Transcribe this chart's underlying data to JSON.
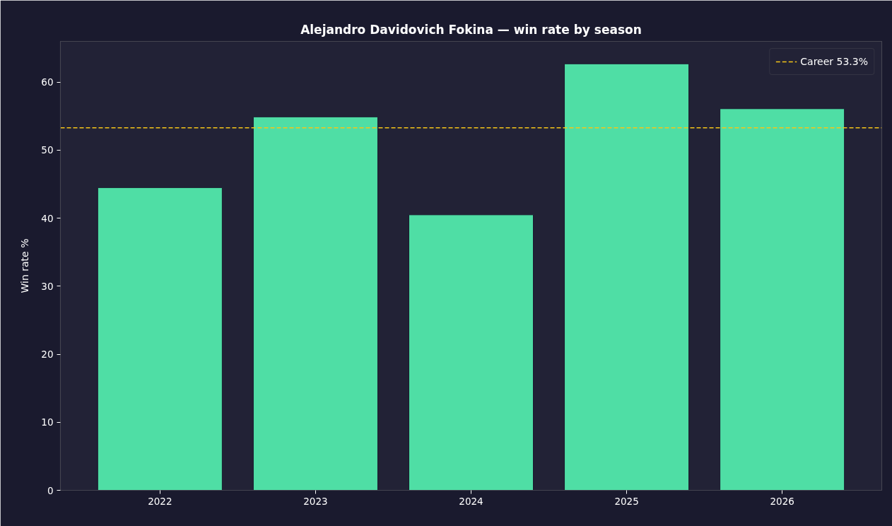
{
  "chart_data": {
    "type": "bar",
    "title": "Alejandro Davidovich Fokina — win rate by season",
    "ylabel": "Win rate %",
    "categories": [
      "2022",
      "2023",
      "2024",
      "2025",
      "2026"
    ],
    "values": [
      44.5,
      54.9,
      40.5,
      62.7,
      56.1
    ],
    "color": "#4fdea5",
    "ylim": [
      0,
      66
    ],
    "yticks": [
      0,
      10,
      20,
      30,
      40,
      50,
      60
    ],
    "grid": false,
    "legend": "top right",
    "ref_lines": [
      {
        "axis": "y",
        "value": 53.3,
        "label": "Career 53.3%",
        "color": "#f5c518",
        "line_style": "dashed"
      }
    ]
  }
}
